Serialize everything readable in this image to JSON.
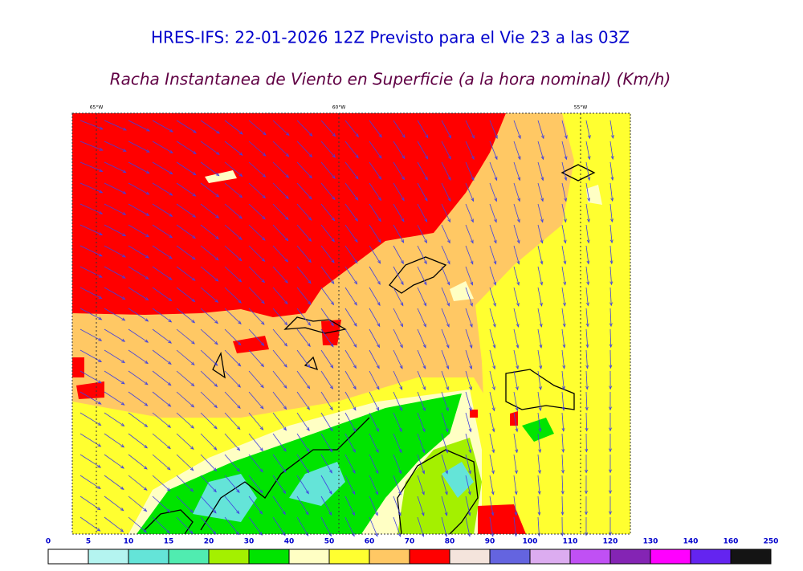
{
  "header": {
    "title": "HRES-IFS: 22-01-2026 12Z Previsto para el Vie 23 a las 03Z",
    "subtitle": "Racha Instantanea de Viento en Superficie (a la hora nominal) (Km/h)"
  },
  "map": {
    "longitude_labels": [
      "65°W",
      "60°W",
      "55°W"
    ]
  },
  "colorbar": {
    "ticks": [
      0,
      5,
      10,
      15,
      20,
      30,
      40,
      50,
      60,
      70,
      80,
      90,
      100,
      110,
      120,
      130,
      140,
      160,
      250
    ],
    "colors": [
      "#ffffff",
      "#b4f4f0",
      "#64e4d8",
      "#50ecb0",
      "#a4f000",
      "#00e400",
      "#ffffc4",
      "#ffff30",
      "#ffc864",
      "#ff0000",
      "#f4e4dc",
      "#6464e0",
      "#dcacf0",
      "#c050f4",
      "#8424b4",
      "#ff00ff",
      "#6424f0",
      "#141414"
    ]
  }
}
